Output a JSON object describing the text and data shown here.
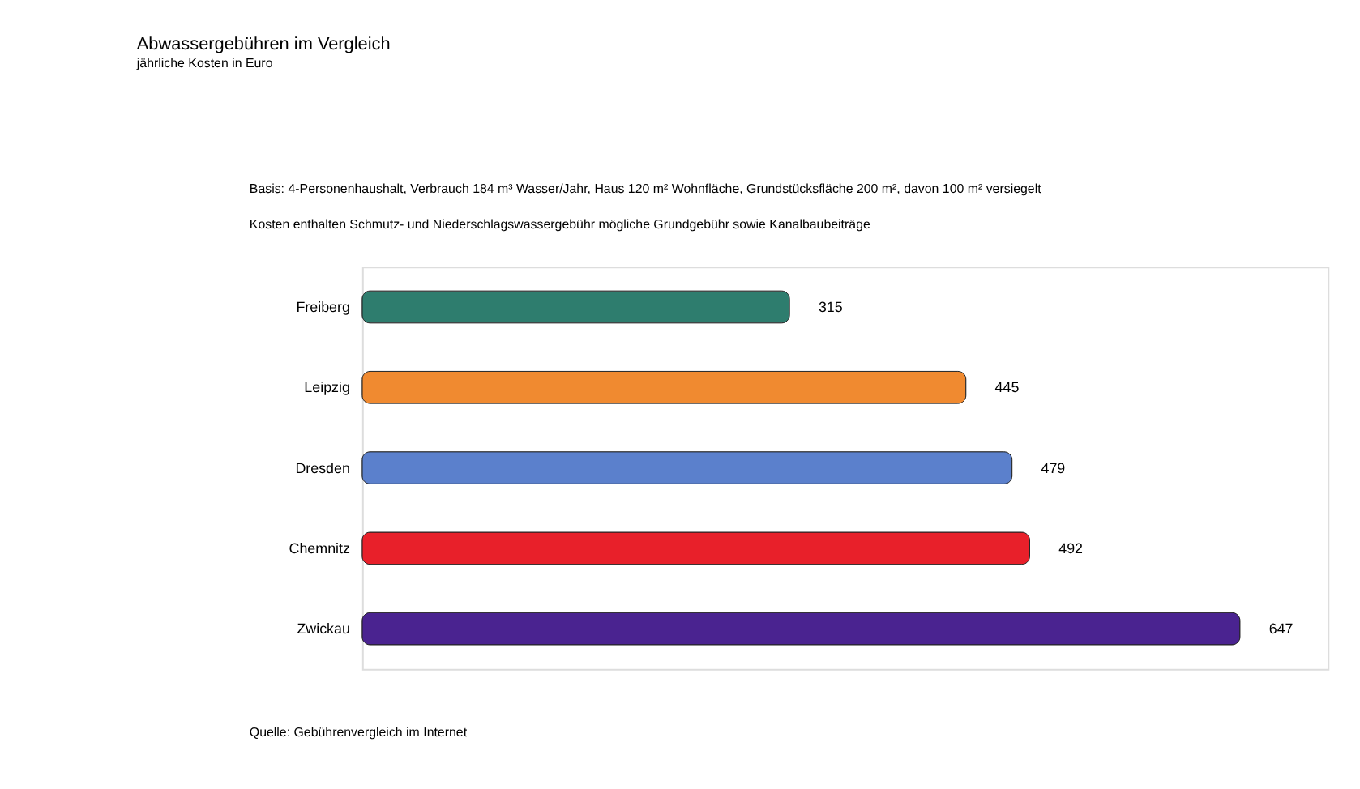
{
  "chart_data": {
    "type": "bar",
    "orientation": "horizontal",
    "title": "Abwassergebühren im Vergleich",
    "subtitle": "jährliche Kosten in Euro",
    "categories": [
      "Freiberg",
      "Leipzig",
      "Dresden",
      "Chemnitz",
      "Zwickau"
    ],
    "values": [
      315,
      445,
      479,
      492,
      647
    ],
    "colors": [
      "#2e7d6e",
      "#f08a30",
      "#5b80cc",
      "#e8202a",
      "#4a2390"
    ],
    "data_labels": true,
    "annotations": [
      "Basis:  4-Personenhaushalt, Verbrauch 184 m³ Wasser/Jahr, Haus 120 m² Wohnfläche, Grundstücksfläche 200 m², davon 100 m² versiegelt",
      "Kosten enthalten Schmutz- und Niederschlagswassergebühr mögliche Grundgebühr sowie Kanalbaubeiträge",
      "Quelle:  Gebührenvergleich im Internet"
    ]
  }
}
